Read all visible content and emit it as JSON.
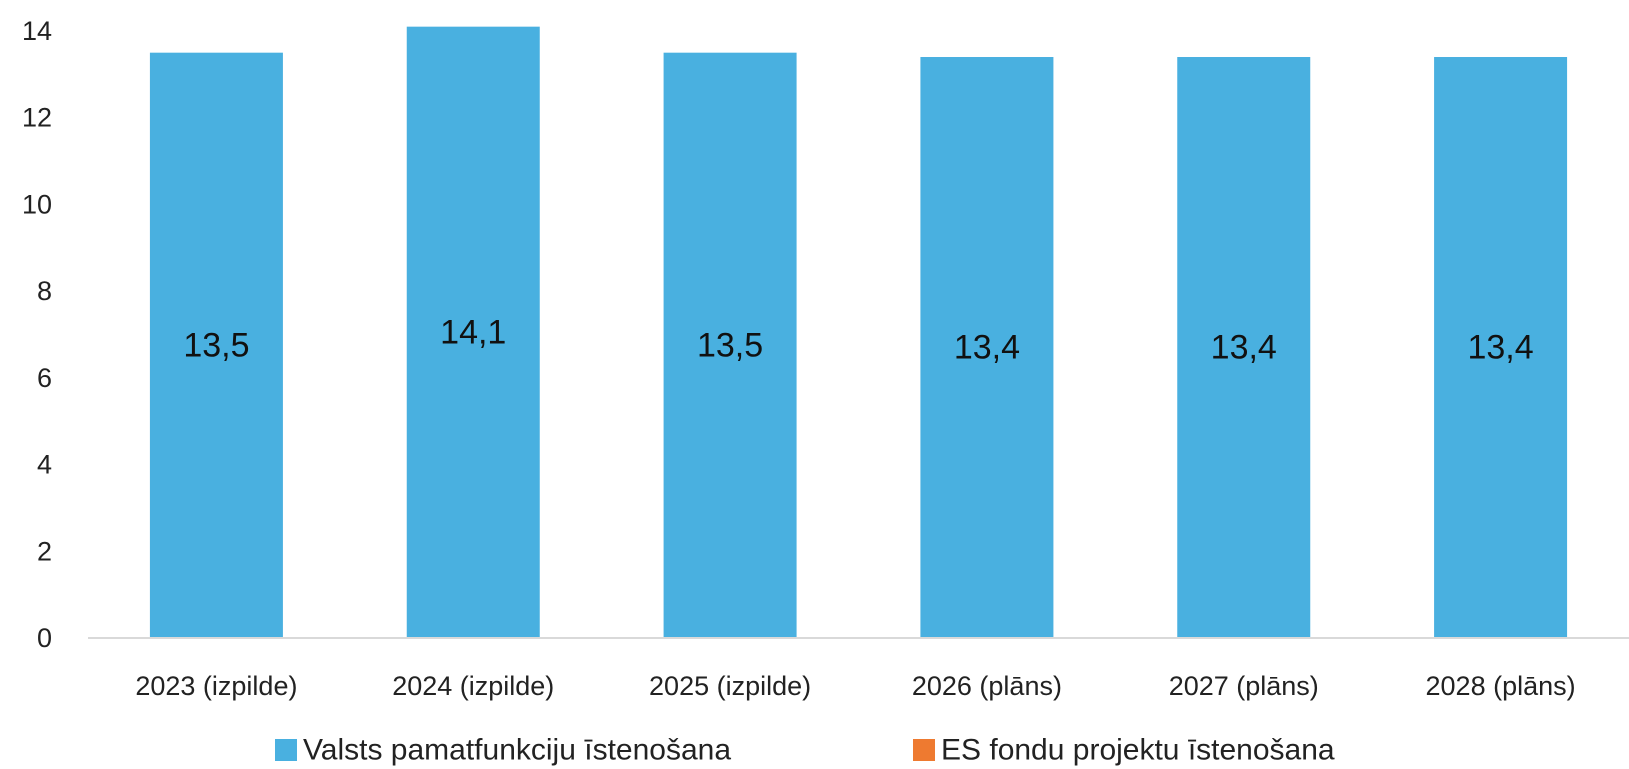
{
  "chart_data": {
    "type": "bar",
    "categories": [
      "2023 (izpilde)",
      "2024 (izpilde)",
      "2025 (izpilde)",
      "2026 (plāns)",
      "2027 (plāns)",
      "2028 (plāns)"
    ],
    "series": [
      {
        "name": "Valsts pamatfunkciju īstenošana",
        "color": "#49B0E0",
        "values": [
          13.5,
          14.1,
          13.5,
          13.4,
          13.4,
          13.4
        ],
        "labels": [
          "13,5",
          "14,1",
          "13,5",
          "13,4",
          "13,4",
          "13,4"
        ]
      },
      {
        "name": "ES fondu projektu īstenošana",
        "color": "#EE7A30",
        "values": [
          0,
          0,
          0,
          0,
          0,
          0
        ],
        "labels": []
      }
    ],
    "title": "",
    "xlabel": "",
    "ylabel": "",
    "ylim": [
      0,
      14
    ],
    "yticks": [
      0,
      2,
      4,
      6,
      8,
      10,
      12,
      14
    ],
    "grid": false,
    "legend": "bottom"
  }
}
